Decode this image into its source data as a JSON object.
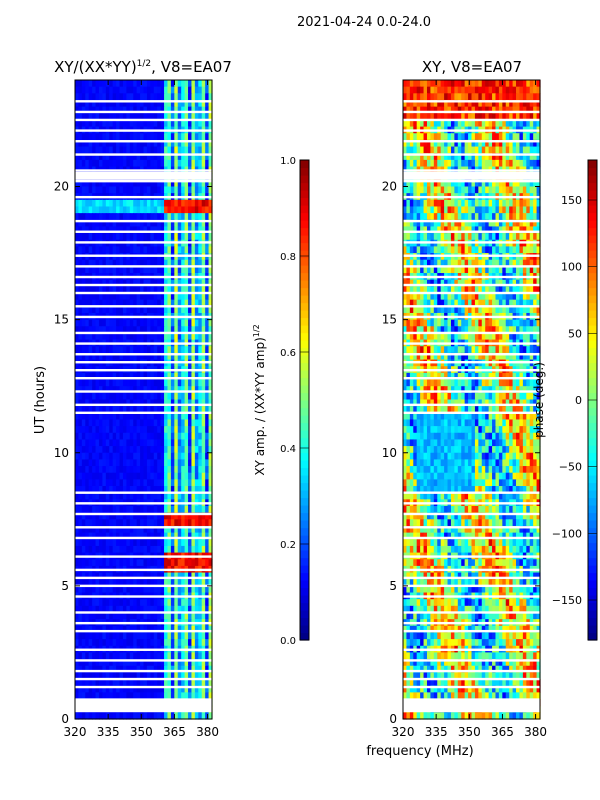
{
  "figure": {
    "suptitle": "2021-04-24 0.0-24.0"
  },
  "chart_data": [
    {
      "type": "heatmap",
      "title": "XY/(XX*YY)^1/2, V8=EA07",
      "title_parts": {
        "main": "XY/(XX*YY)",
        "exponent": "1/2",
        "suffix": ", V8=EA07"
      },
      "xlabel": "",
      "ylabel": "UT (hours)",
      "xlim": [
        320,
        382
      ],
      "ylim": [
        0,
        24
      ],
      "xticks": [
        320,
        335,
        350,
        365,
        380
      ],
      "yticks": [
        0,
        5,
        10,
        15,
        20
      ],
      "colormap": "jet",
      "colorbar": {
        "label_parts": {
          "main": "XY amp. / (XX*YY amp)",
          "exponent": "1/2"
        },
        "range": [
          0.0,
          1.0
        ],
        "ticks": [
          "0.0",
          "0.2",
          "0.4",
          "0.6",
          "0.8",
          "1.0"
        ],
        "tick_values": [
          0.0,
          0.2,
          0.4,
          0.6,
          0.8,
          1.0
        ]
      },
      "description_values": {
        "background_level": 0.1,
        "active_band_mhz": [
          361,
          382
        ],
        "active_band_level": 0.35,
        "rfi_bursts_ut": [
          19.2,
          5.9,
          7.5
        ]
      }
    },
    {
      "type": "heatmap",
      "title": "XY, V8=EA07",
      "xlabel": "frequency (MHz)",
      "ylabel": "",
      "xlim": [
        320,
        382
      ],
      "ylim": [
        0,
        24
      ],
      "xticks": [
        320,
        335,
        350,
        365,
        380
      ],
      "yticks": [
        0,
        5,
        10,
        15,
        20
      ],
      "colormap": "jet",
      "colorbar": {
        "label": "phase (deg.)",
        "range": [
          -180,
          180
        ],
        "ticks": [
          "150",
          "100",
          "50",
          "0",
          "−50",
          "−100",
          "−150"
        ],
        "tick_values": [
          150,
          100,
          50,
          0,
          -50,
          -100,
          -150
        ]
      },
      "description_values": {
        "phase_blue_region_ut": [
          8.5,
          11.5
        ],
        "phase_blue_region_mhz": [
          326,
          352
        ]
      }
    }
  ],
  "flagged_gaps_ut": [
    0.3,
    0.6,
    1.2,
    1.5,
    1.8,
    2.2,
    2.6,
    3.3,
    3.6,
    4.0,
    4.6,
    5.0,
    5.3,
    5.6,
    6.1,
    6.8,
    7.2,
    7.7,
    8.1,
    8.5,
    11.5,
    11.8,
    12.3,
    12.8,
    13.1,
    13.4,
    13.7,
    14.1,
    14.5,
    15.1,
    15.5,
    16.0,
    16.3,
    16.6,
    17.0,
    17.4,
    17.9,
    18.3,
    18.7,
    19.6,
    20.2,
    20.6,
    21.2,
    21.7,
    22.1,
    22.5,
    22.8,
    23.2
  ]
}
